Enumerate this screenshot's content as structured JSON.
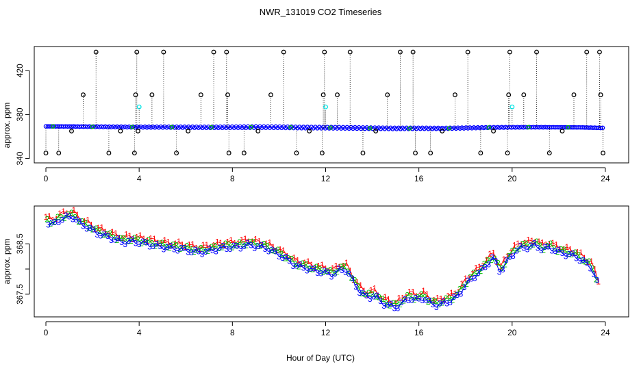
{
  "figure": {
    "title": "NWR_131019  CO2 Timeseries",
    "xlabel": "Hour of Day (UTC)"
  },
  "colors": {
    "black": "#000000",
    "blue": "#0000ff",
    "green": "#00c000",
    "red": "#ff0000",
    "cyan": "#00e5e5"
  },
  "chart_data": [
    {
      "type": "scatter",
      "title": "",
      "xlabel": "",
      "ylabel": "approx. ppm",
      "xlim": [
        -0.5,
        25
      ],
      "ylim": [
        336,
        442
      ],
      "xticks": [
        0,
        4,
        8,
        12,
        16,
        20,
        24
      ],
      "yticks": [
        340,
        380,
        420
      ],
      "ytick_labels": [
        "340",
        "380",
        "420"
      ],
      "baseline": {
        "x": [
          0.0,
          1.0,
          2.0,
          3.0,
          4.0,
          5.0,
          6.0,
          7.0,
          8.0,
          9.0,
          10.0,
          11.0,
          12.0,
          13.0,
          14.0,
          15.0,
          16.0,
          17.0,
          18.0,
          19.0,
          20.0,
          21.0,
          22.0,
          23.0,
          23.9
        ],
        "y": [
          369.3,
          369.2,
          369.0,
          368.8,
          368.6,
          368.6,
          368.5,
          368.4,
          368.5,
          368.6,
          368.5,
          368.2,
          368.1,
          367.9,
          367.6,
          367.4,
          367.5,
          367.4,
          367.8,
          368.2,
          368.4,
          368.5,
          368.4,
          368.3,
          367.8
        ],
        "color": "#0000ff",
        "marker": "circle"
      },
      "spikes": [
        {
          "x": 0.0,
          "y": 345
        },
        {
          "x": 0.55,
          "y": 345
        },
        {
          "x": 1.1,
          "y": 365
        },
        {
          "x": 1.6,
          "y": 398
        },
        {
          "x": 2.15,
          "y": 437
        },
        {
          "x": 2.7,
          "y": 345
        },
        {
          "x": 3.2,
          "y": 365
        },
        {
          "x": 3.8,
          "y": 345
        },
        {
          "x": 3.85,
          "y": 398
        },
        {
          "x": 3.9,
          "y": 437
        },
        {
          "x": 3.95,
          "y": 365
        },
        {
          "x": 4.55,
          "y": 398
        },
        {
          "x": 5.05,
          "y": 437
        },
        {
          "x": 5.6,
          "y": 345
        },
        {
          "x": 6.1,
          "y": 365
        },
        {
          "x": 6.65,
          "y": 398
        },
        {
          "x": 7.2,
          "y": 437
        },
        {
          "x": 7.75,
          "y": 437
        },
        {
          "x": 7.8,
          "y": 398
        },
        {
          "x": 7.85,
          "y": 345
        },
        {
          "x": 8.5,
          "y": 345
        },
        {
          "x": 9.1,
          "y": 365
        },
        {
          "x": 9.65,
          "y": 398
        },
        {
          "x": 10.2,
          "y": 437
        },
        {
          "x": 10.75,
          "y": 345
        },
        {
          "x": 11.3,
          "y": 365
        },
        {
          "x": 11.85,
          "y": 345
        },
        {
          "x": 11.9,
          "y": 398
        },
        {
          "x": 11.95,
          "y": 437
        },
        {
          "x": 12.5,
          "y": 398
        },
        {
          "x": 13.05,
          "y": 437
        },
        {
          "x": 13.6,
          "y": 345
        },
        {
          "x": 14.15,
          "y": 365
        },
        {
          "x": 14.65,
          "y": 398
        },
        {
          "x": 15.2,
          "y": 437
        },
        {
          "x": 15.75,
          "y": 437
        },
        {
          "x": 15.85,
          "y": 345
        },
        {
          "x": 16.5,
          "y": 345
        },
        {
          "x": 17.0,
          "y": 365
        },
        {
          "x": 17.55,
          "y": 398
        },
        {
          "x": 18.1,
          "y": 437
        },
        {
          "x": 18.65,
          "y": 345
        },
        {
          "x": 19.2,
          "y": 365
        },
        {
          "x": 19.8,
          "y": 345
        },
        {
          "x": 19.85,
          "y": 398
        },
        {
          "x": 19.9,
          "y": 437
        },
        {
          "x": 20.5,
          "y": 398
        },
        {
          "x": 21.05,
          "y": 437
        },
        {
          "x": 21.6,
          "y": 345
        },
        {
          "x": 22.15,
          "y": 365
        },
        {
          "x": 22.65,
          "y": 398
        },
        {
          "x": 23.2,
          "y": 437
        },
        {
          "x": 23.75,
          "y": 437
        },
        {
          "x": 23.8,
          "y": 398
        },
        {
          "x": 23.9,
          "y": 345
        }
      ],
      "cyan_points": [
        {
          "x": 4.0,
          "y": 387
        },
        {
          "x": 12.0,
          "y": 387
        },
        {
          "x": 20.0,
          "y": 387
        }
      ]
    },
    {
      "type": "scatter",
      "title": "",
      "xlabel": "Hour of Day (UTC)",
      "ylabel": "approx. ppm",
      "xlim": [
        -0.5,
        25
      ],
      "ylim": [
        367.05,
        369.25
      ],
      "xticks": [
        0,
        4,
        8,
        12,
        16,
        20,
        24
      ],
      "yticks": [
        367.5,
        368.0,
        368.5
      ],
      "ytick_labels": [
        "367.5",
        "",
        "368.5"
      ],
      "series": [
        {
          "name": "1",
          "color": "#ff0000",
          "offset": 0.05
        },
        {
          "name": "2",
          "color": "#00c000",
          "offset": -0.05
        },
        {
          "name": "3",
          "color": "#0000ff",
          "offset": -0.12
        }
      ],
      "x": [
        0.0,
        0.3,
        0.6,
        0.9,
        1.2,
        1.5,
        1.8,
        2.1,
        2.4,
        2.7,
        3.0,
        3.3,
        3.6,
        3.9,
        4.2,
        4.5,
        4.8,
        5.1,
        5.4,
        5.7,
        6.0,
        6.3,
        6.6,
        6.9,
        7.2,
        7.5,
        7.8,
        8.1,
        8.4,
        8.7,
        9.0,
        9.3,
        9.6,
        9.9,
        10.2,
        10.5,
        10.8,
        11.1,
        11.4,
        11.7,
        12.0,
        12.3,
        12.6,
        12.9,
        13.2,
        13.5,
        13.8,
        14.1,
        14.4,
        14.7,
        15.0,
        15.3,
        15.6,
        15.9,
        16.2,
        16.5,
        16.8,
        17.1,
        17.4,
        17.7,
        18.0,
        18.3,
        18.6,
        18.9,
        19.2,
        19.5,
        19.8,
        20.1,
        20.4,
        20.7,
        21.0,
        21.3,
        21.6,
        21.9,
        22.2,
        22.5,
        22.8,
        23.1,
        23.4,
        23.7
      ],
      "y": [
        369.0,
        368.95,
        369.05,
        369.1,
        369.1,
        368.95,
        368.9,
        368.8,
        368.75,
        368.7,
        368.65,
        368.6,
        368.62,
        368.6,
        368.58,
        368.55,
        368.52,
        368.5,
        368.48,
        368.47,
        368.45,
        368.42,
        368.4,
        368.42,
        368.45,
        368.48,
        368.5,
        368.5,
        368.52,
        368.55,
        368.52,
        368.5,
        368.45,
        368.38,
        368.3,
        368.2,
        368.12,
        368.1,
        368.05,
        368.02,
        368.0,
        367.95,
        368.05,
        368.05,
        367.8,
        367.6,
        367.5,
        367.55,
        367.4,
        367.35,
        367.3,
        367.4,
        367.5,
        367.45,
        367.5,
        367.38,
        367.35,
        367.4,
        367.45,
        367.55,
        367.75,
        367.9,
        368.0,
        368.15,
        368.3,
        368.0,
        368.25,
        368.4,
        368.5,
        368.5,
        368.55,
        368.45,
        368.5,
        368.42,
        368.38,
        368.35,
        368.3,
        368.2,
        368.1,
        367.75
      ]
    }
  ]
}
